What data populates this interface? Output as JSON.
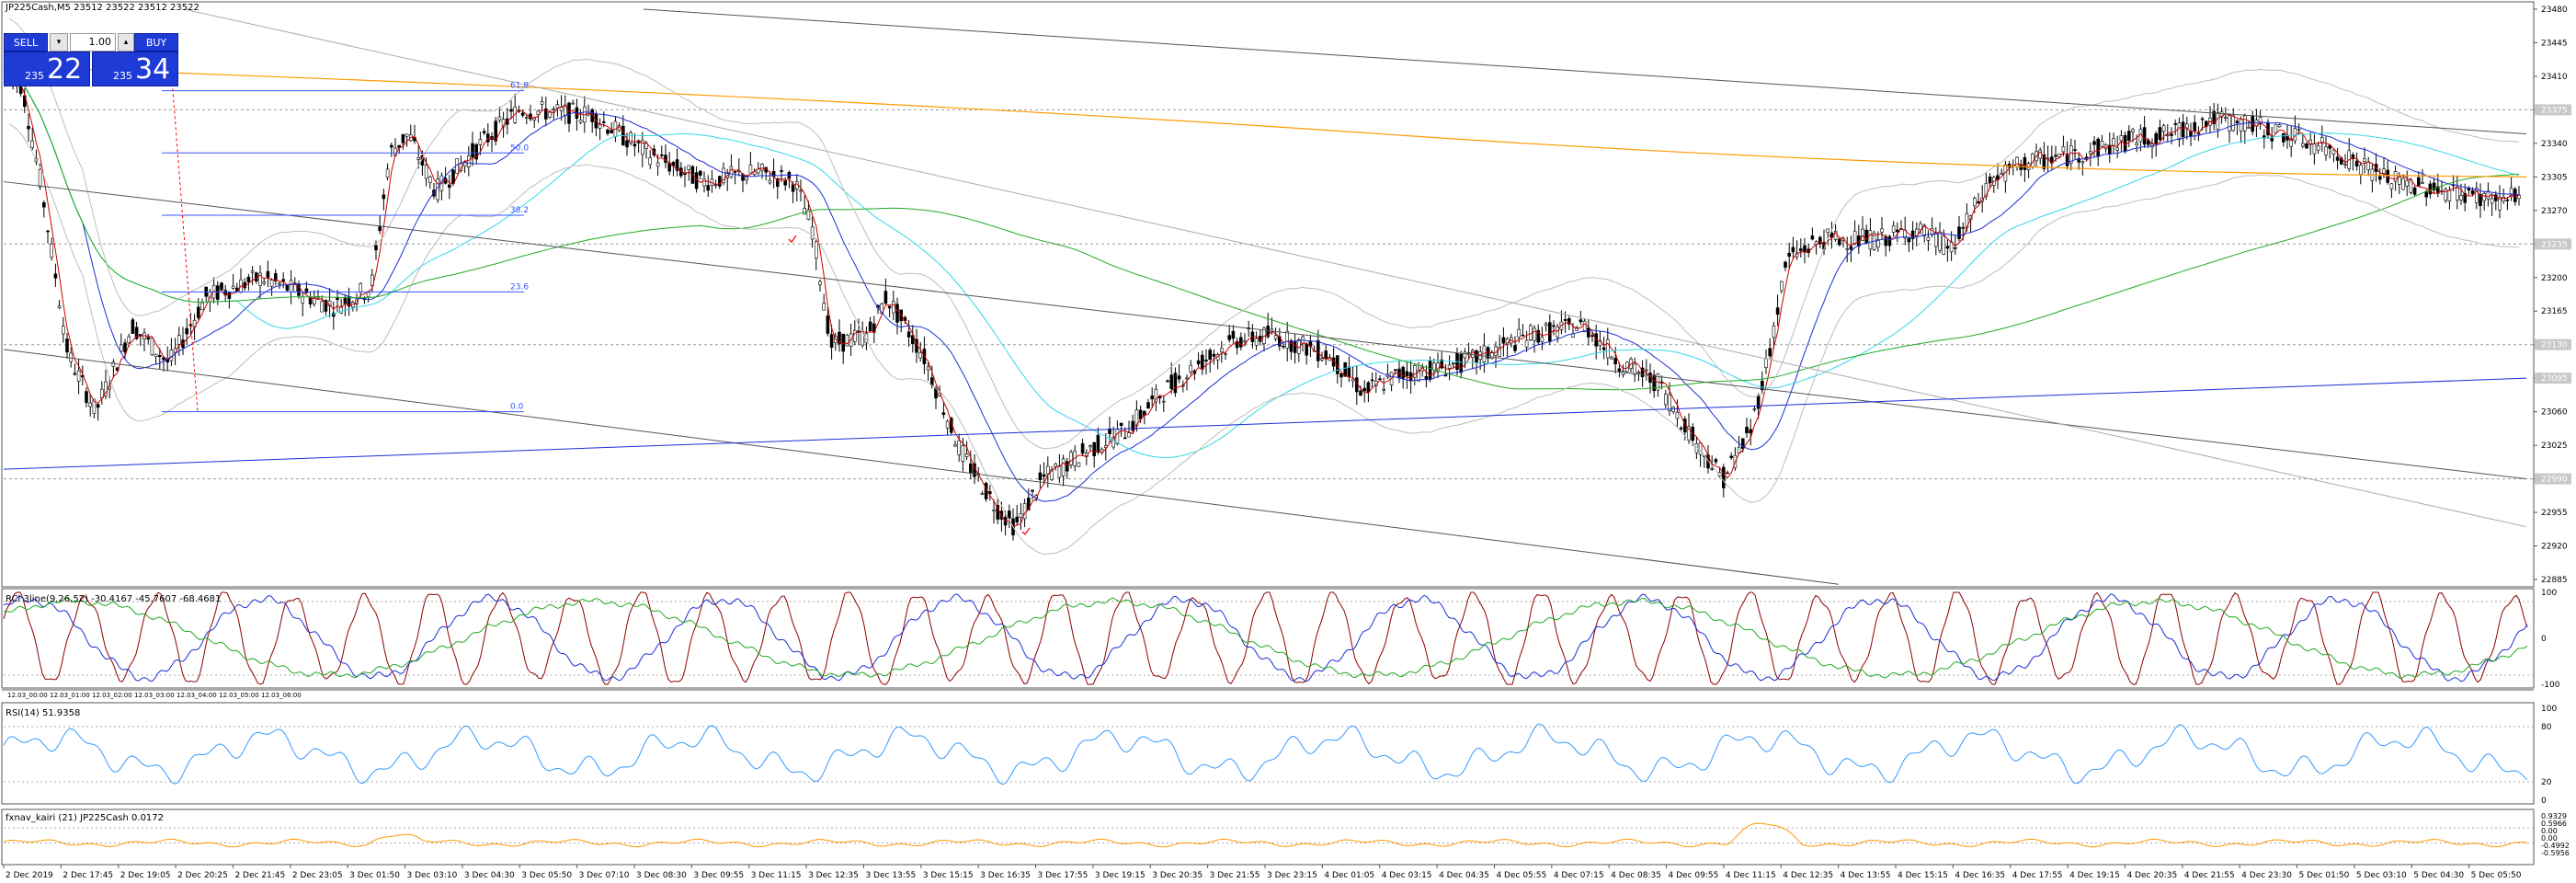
{
  "window": {
    "symbol_title": "JP225Cash,M5  23512 23522 23512 23522"
  },
  "trade_panel": {
    "sell_label": "SELL",
    "buy_label": "BUY",
    "lot_value": "1.00",
    "lot_down_icon": "chevron-down-icon",
    "lot_up_icon": "chevron-up-icon",
    "sell_price_small": "235",
    "sell_price_big": "22",
    "buy_price_small": "235",
    "buy_price_big": "34",
    "color": "#1f3bd6"
  },
  "main_chart": {
    "price_axis": [
      "23480",
      "23445",
      "23410",
      "23375",
      "23340",
      "23305",
      "23270",
      "23235",
      "23200",
      "23165",
      "23130",
      "23095",
      "23060",
      "23025",
      "22990",
      "22955",
      "22920",
      "22885"
    ],
    "price_range": [
      22885,
      23480
    ],
    "current_price_tags": [
      "23375",
      "23130",
      "23095",
      "22990",
      "23235"
    ],
    "fibo_levels": [
      "61.8",
      "50.0",
      "38.2",
      "23.6",
      "0.0"
    ]
  },
  "rci_panel": {
    "label": "RCI 3line(9,26,52) -30.4167 -45.7607 -68.4681",
    "axis": [
      "100",
      "0",
      "-100"
    ],
    "time_labels": [
      "12.03_00:00",
      "12.03_01:00",
      "12.03_02:00",
      "12.03_03:00",
      "12.03_04:00",
      "12.03_05:00",
      "12.03_06:00"
    ]
  },
  "rsi_panel": {
    "label": "RSI(14) 51.9358",
    "axis": [
      "100",
      "80",
      "20",
      "0"
    ]
  },
  "kairi_panel": {
    "label": "fxnav_kairi (21) JP225Cash 0.0172",
    "axis": [
      "0.9329",
      "0.5966",
      "0.00",
      "0.00",
      "-0.4992",
      "-0.5956"
    ]
  },
  "time_axis": [
    "2 Dec 2019",
    "2 Dec 17:45",
    "2 Dec 19:05",
    "2 Dec 20:25",
    "2 Dec 21:45",
    "2 Dec 23:05",
    "3 Dec 01:50",
    "3 Dec 03:10",
    "3 Dec 04:30",
    "3 Dec 05:50",
    "3 Dec 07:10",
    "3 Dec 08:30",
    "3 Dec 09:55",
    "3 Dec 11:15",
    "3 Dec 12:35",
    "3 Dec 13:55",
    "3 Dec 15:15",
    "3 Dec 16:35",
    "3 Dec 17:55",
    "3 Dec 19:15",
    "3 Dec 20:35",
    "3 Dec 21:55",
    "3 Dec 23:15",
    "4 Dec 01:05",
    "4 Dec 03:15",
    "4 Dec 04:35",
    "4 Dec 05:55",
    "4 Dec 07:15",
    "4 Dec 08:35",
    "4 Dec 09:55",
    "4 Dec 11:15",
    "4 Dec 12:35",
    "4 Dec 13:55",
    "4 Dec 15:15",
    "4 Dec 16:35",
    "4 Dec 17:55",
    "4 Dec 19:15",
    "4 Dec 20:35",
    "4 Dec 21:55",
    "4 Dec 23:30",
    "5 Dec 01:50",
    "5 Dec 03:10",
    "5 Dec 04:30",
    "5 Dec 05:50"
  ],
  "colors": {
    "candle": "#000000",
    "ma_fast": "#cc0000",
    "ma_blue": "#1a2fd6",
    "ma_cyan": "#33d6e6",
    "ma_green": "#22aa22",
    "ma_orange": "#ff9900",
    "bollinger": "#bdbdbd",
    "trendline": "#555555",
    "fibo": "#3355ff",
    "rsi": "#3399ff",
    "kairi": "#ff9900"
  }
}
